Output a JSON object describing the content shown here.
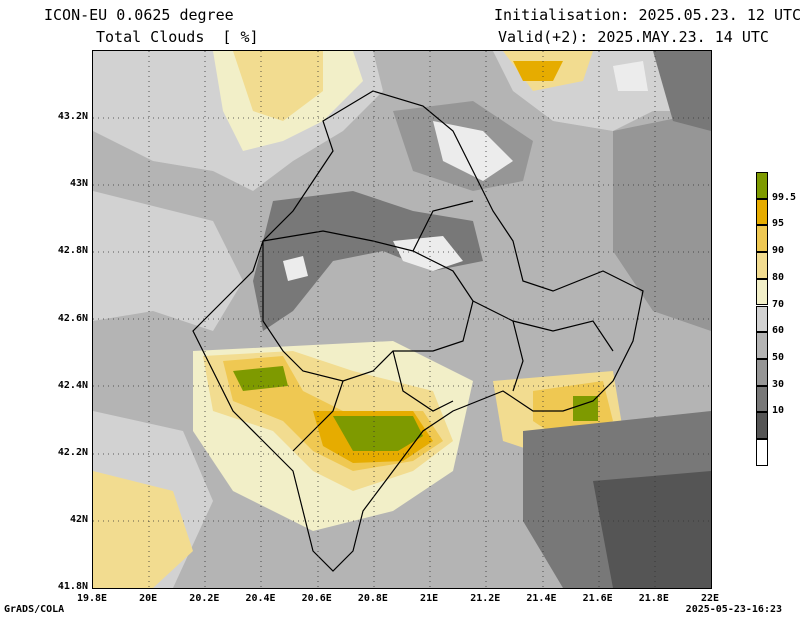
{
  "header": {
    "model": "ICON-EU 0.0625 degree",
    "variable": "Total Clouds  [ %]",
    "init": "Initialisation: 2025.05.23. 12 UTC",
    "valid": "Valid(+2): 2025.MAY.23. 14 UTC"
  },
  "axes": {
    "x_ticks": [
      "19.8E",
      "20E",
      "20.2E",
      "20.4E",
      "20.6E",
      "20.8E",
      "21E",
      "21.2E",
      "21.4E",
      "21.6E",
      "21.8E",
      "22E"
    ],
    "y_ticks": [
      "43.2N",
      "43N",
      "42.8N",
      "42.6N",
      "42.4N",
      "42.2N",
      "42N",
      "41.8N"
    ],
    "lon_range": [
      19.8,
      22.0
    ],
    "lat_range": [
      41.8,
      43.4
    ]
  },
  "legend": {
    "levels": [
      "99.5",
      "95",
      "90",
      "80",
      "70",
      "60",
      "50",
      "30",
      "10"
    ],
    "colors": [
      "#7e9a00",
      "#e6ac00",
      "#efc852",
      "#f2dc90",
      "#f2efc8",
      "#d2d2d2",
      "#b4b4b4",
      "#969696",
      "#787878",
      "#555555",
      "#ffffff"
    ]
  },
  "footer": {
    "credit": "GrADS/COLA",
    "timestamp": "2025-05-23-16:23"
  }
}
